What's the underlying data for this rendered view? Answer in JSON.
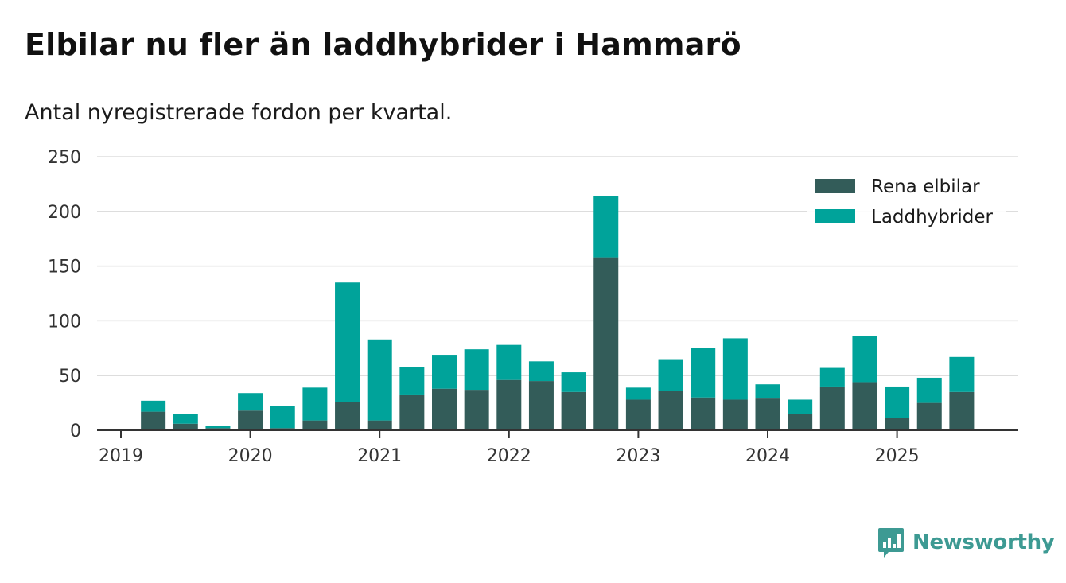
{
  "header": {
    "title": "Elbilar nu fler än laddhybrider i Hammarö",
    "subtitle": "Antal nyregistrerade fordon per kvartal."
  },
  "brand": {
    "name": "Newsworthy",
    "icon": "newsworthy-chart-icon",
    "color": "#3d9a93"
  },
  "colors": {
    "rena_elbilar": "#335c59",
    "laddhybrider": "#00a39a",
    "grid": "#dddddd",
    "axis": "#333333"
  },
  "chart_data": {
    "type": "bar",
    "stacked": true,
    "title": "Elbilar nu fler än laddhybrider i Hammarö",
    "subtitle": "Antal nyregistrerade fordon per kvartal.",
    "categories": [
      "2019-Q1",
      "2019-Q2",
      "2019-Q3",
      "2019-Q4",
      "2020-Q1",
      "2020-Q2",
      "2020-Q3",
      "2020-Q4",
      "2021-Q1",
      "2021-Q2",
      "2021-Q3",
      "2021-Q4",
      "2022-Q1",
      "2022-Q2",
      "2022-Q3",
      "2022-Q4",
      "2023-Q1",
      "2023-Q2",
      "2023-Q3",
      "2023-Q4",
      "2024-Q1",
      "2024-Q2",
      "2024-Q3",
      "2024-Q4",
      "2025-Q1",
      "2025-Q2",
      "2025-Q3"
    ],
    "series": [
      {
        "name": "Rena elbilar",
        "color": "#335c59",
        "values": [
          0,
          17,
          6,
          2,
          18,
          2,
          9,
          26,
          9,
          32,
          38,
          37,
          46,
          45,
          35,
          158,
          28,
          36,
          30,
          28,
          29,
          15,
          40,
          44,
          11,
          25,
          35
        ]
      },
      {
        "name": "Laddhybrider",
        "color": "#00a39a",
        "values": [
          0,
          10,
          9,
          2,
          16,
          20,
          30,
          109,
          74,
          26,
          31,
          37,
          32,
          18,
          18,
          56,
          11,
          29,
          45,
          56,
          13,
          13,
          17,
          42,
          29,
          23,
          32
        ]
      }
    ],
    "x_ticks": [
      "2019",
      "2020",
      "2021",
      "2022",
      "2023",
      "2024",
      "2025"
    ],
    "y_ticks": [
      0,
      50,
      100,
      150,
      200,
      250
    ],
    "ylim": [
      0,
      250
    ],
    "xlabel": "",
    "ylabel": "",
    "grid": true,
    "legend": {
      "placement": "top-right",
      "entries": [
        "Rena elbilar",
        "Laddhybrider"
      ]
    }
  }
}
